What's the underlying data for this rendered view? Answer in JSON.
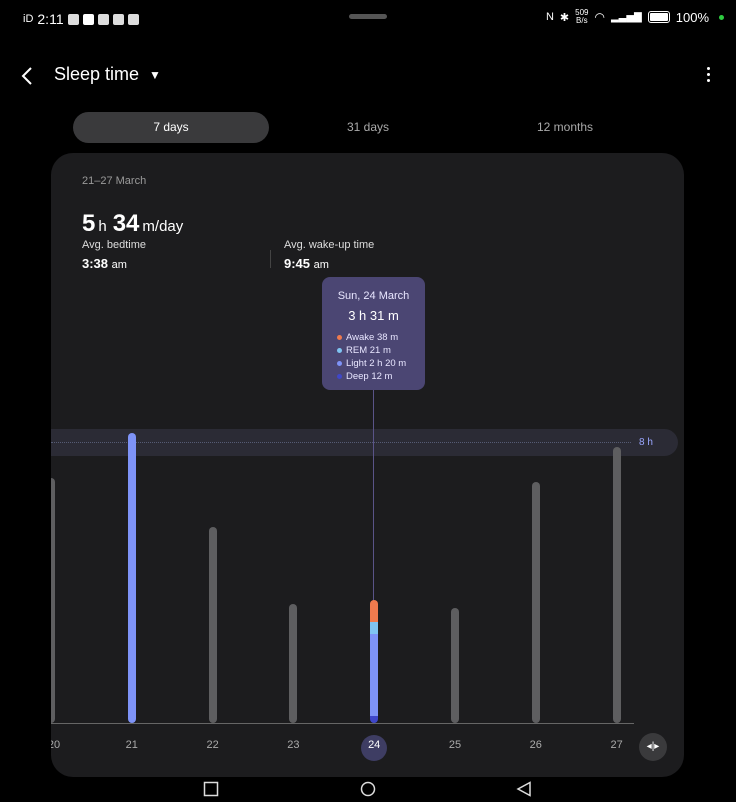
{
  "status_bar": {
    "time_prefix": "iD",
    "time": "2:11",
    "net_speed_top": "509",
    "net_speed_bottom": "B/s",
    "battery": "100%"
  },
  "header": {
    "title": "Sleep time",
    "icons": [
      "back-arrow-icon",
      "dropdown-caret-icon",
      "more-options-icon"
    ]
  },
  "tabs": [
    {
      "label": "7 days",
      "active": true
    },
    {
      "label": "31 days",
      "active": false
    },
    {
      "label": "12 months",
      "active": false
    }
  ],
  "summary": {
    "range": "21–27 March",
    "avg_hours": "5",
    "avg_h_unit": "h",
    "avg_minutes": "34",
    "avg_m_unit": "m/day",
    "bedtime_label": "Avg. bedtime",
    "bedtime_value": "3:38",
    "bedtime_unit": "am",
    "wake_label": "Avg. wake-up time",
    "wake_value": "9:45",
    "wake_unit": "am"
  },
  "tooltip": {
    "date": "Sun, 24 March",
    "duration": "3 h 31 m",
    "stages": [
      {
        "label": "Awake 38 m",
        "color": "#ef7a4e"
      },
      {
        "label": "REM 21 m",
        "color": "#7fc4f2"
      },
      {
        "label": "Light 2 h 20 m",
        "color": "#7e93f7"
      },
      {
        "label": "Deep 12 m",
        "color": "#3f47c9"
      }
    ]
  },
  "chart_data": {
    "type": "bar",
    "categories": [
      "20",
      "21",
      "22",
      "23",
      "24",
      "25",
      "26",
      "27"
    ],
    "values": [
      7.0,
      8.3,
      5.6,
      3.4,
      3.52,
      3.3,
      6.9,
      7.9
    ],
    "unit": "h",
    "ylim": [
      0,
      8.5
    ],
    "goal": 8,
    "goal_label": "8 h",
    "selected": "24",
    "stages_selected": {
      "Deep": 0.2,
      "Light": 2.33,
      "REM": 0.35,
      "Awake": 0.63
    },
    "colors": {
      "default": "#5e5e60",
      "highlight": "#7e93f7"
    }
  },
  "zoom_icon": "zoom-fit-icon",
  "nav_bar": [
    "recents-square-icon",
    "home-circle-icon",
    "back-triangle-icon"
  ]
}
